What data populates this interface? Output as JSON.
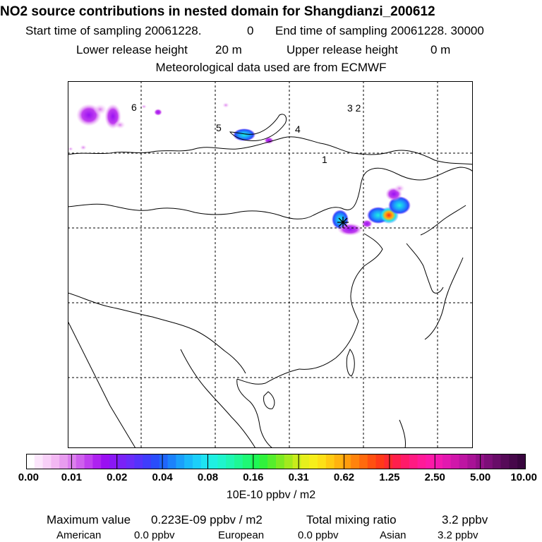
{
  "header": {
    "title": "NO2 source contributions in nested domain for Shangdianzi_200612",
    "start_label": "Start time of sampling 20061228.",
    "start_value": "0",
    "end_label": "End time of sampling 20061228. 30000",
    "lower_label": "Lower release height",
    "lower_value": "20 m",
    "upper_label": "Upper release height",
    "upper_value": "0 m",
    "met_line": "Meteorological data used are from ECMWF"
  },
  "map": {
    "region_labels": [
      "6",
      "5",
      "4",
      "3 2",
      "1"
    ],
    "receptor_marker": "star"
  },
  "colorbar": {
    "ticks": [
      "0.00",
      "0.01",
      "0.02",
      "0.04",
      "0.08",
      "0.16",
      "0.31",
      "0.62",
      "1.25",
      "2.50",
      "5.00",
      "10.00"
    ],
    "unit": "10E-10 ppbv / m2",
    "colors": [
      "#ffffff",
      "#fce6fc",
      "#f8d0f8",
      "#f3b8f3",
      "#e89cef",
      "#dc7fee",
      "#cf60ee",
      "#c040ef",
      "#ae22f0",
      "#9a10f2",
      "#8a18f4",
      "#7a22f7",
      "#6a2cfa",
      "#5533fc",
      "#3f3dfc",
      "#2a4dfc",
      "#2066fb",
      "#1b82fb",
      "#1a9ffb",
      "#1ab9fb",
      "#1ccffa",
      "#1ee3f2",
      "#1ef0e2",
      "#1ef5cc",
      "#1ef7b2",
      "#1ef895",
      "#1ef975",
      "#1ef755",
      "#30f23c",
      "#55ee2c",
      "#7dea22",
      "#a3ea1e",
      "#c8ec1c",
      "#e6ef1c",
      "#f7ee1a",
      "#fde016",
      "#ffca12",
      "#ffb30f",
      "#ff9c0d",
      "#ff830c",
      "#ff6a0d",
      "#ff5010",
      "#ff3a18",
      "#ff2a30",
      "#ff1f4c",
      "#ff1a68",
      "#ff1a82",
      "#ff1a98",
      "#fc1aa8",
      "#f219b0",
      "#e218b0",
      "#d016aa",
      "#bd14a2",
      "#a81296",
      "#921088",
      "#7c0e78",
      "#680c68",
      "#560a58",
      "#46084a",
      "#38063e"
    ]
  },
  "stats": {
    "max_label": "Maximum value",
    "max_value": "0.223E-09 ppbv / m2",
    "total_label": "Total mixing ratio",
    "total_value": "3.2 ppbv",
    "american_label": "American",
    "american_value": "0.0 ppbv",
    "european_label": "European",
    "european_value": "0.0 ppbv",
    "asian_label": "Asian",
    "asian_value": "3.2 ppbv"
  }
}
